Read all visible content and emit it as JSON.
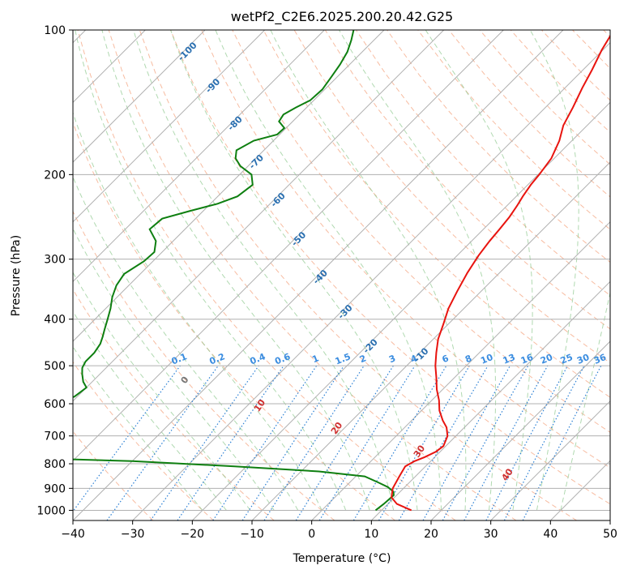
{
  "chart_data": {
    "type": "line",
    "title": "wetPf2_C2E6.2025.200.20.42.G25",
    "xlabel": "Temperature (°C)",
    "ylabel": "Pressure (hPa)",
    "xlim": [
      -40,
      50
    ],
    "ylim": [
      1050,
      100
    ],
    "y_scale": "log",
    "grid": true,
    "x_ticks": [
      "−40",
      "−30",
      "−20",
      "−10",
      "0",
      "10",
      "20",
      "30",
      "40",
      "50"
    ],
    "x_tick_values": [
      -40,
      -30,
      -20,
      -10,
      0,
      10,
      20,
      30,
      40,
      50
    ],
    "y_ticks": [
      "100",
      "200",
      "300",
      "400",
      "500",
      "600",
      "700",
      "800",
      "900",
      "1000"
    ],
    "y_tick_values": [
      100,
      200,
      300,
      400,
      500,
      600,
      700,
      800,
      900,
      1000
    ],
    "colors": {
      "temperature": "#e8140f",
      "dewpoint": "#0e7f10",
      "isotherm": "#b0b0b0",
      "dry_adiabat": "#f4a582",
      "moist_adiabat": "#8fc98f",
      "mixing_ratio": "#2a7fd4",
      "mixing_label": "#3b8de0",
      "isotherm_label": "#2a6fb0",
      "adiabat_label": "#d03030"
    },
    "series": [
      {
        "key": "temperature",
        "points": [
          [
            15.0,
            1000
          ],
          [
            11.5,
            970
          ],
          [
            9.5,
            940
          ],
          [
            8.2,
            900
          ],
          [
            7.3,
            850
          ],
          [
            6.6,
            810
          ],
          [
            7.3,
            790
          ],
          [
            8.3,
            775
          ],
          [
            9.3,
            755
          ],
          [
            9.6,
            735
          ],
          [
            8.6,
            700
          ],
          [
            7.0,
            672
          ],
          [
            5.2,
            650
          ],
          [
            3.0,
            620
          ],
          [
            1.2,
            590
          ],
          [
            -1.0,
            560
          ],
          [
            -3.0,
            530
          ],
          [
            -5.2,
            500
          ],
          [
            -7.2,
            470
          ],
          [
            -9.2,
            440
          ],
          [
            -10.8,
            410
          ],
          [
            -12.6,
            380
          ],
          [
            -14.0,
            350
          ],
          [
            -15.4,
            320
          ],
          [
            -16.4,
            295
          ],
          [
            -17.0,
            275
          ],
          [
            -17.3,
            260
          ],
          [
            -17.7,
            245
          ],
          [
            -18.3,
            232
          ],
          [
            -18.9,
            222
          ],
          [
            -19.5,
            210
          ],
          [
            -19.8,
            200
          ],
          [
            -20.5,
            185
          ],
          [
            -22.1,
            170
          ],
          [
            -24.0,
            158
          ],
          [
            -25.4,
            145
          ],
          [
            -27.1,
            132
          ],
          [
            -28.5,
            121
          ],
          [
            -30.2,
            110
          ],
          [
            -31.5,
            100
          ]
        ]
      },
      {
        "key": "dewpoint",
        "points": [
          [
            9.0,
            1000
          ],
          [
            9.3,
            970
          ],
          [
            9.5,
            930
          ],
          [
            8.9,
            915
          ],
          [
            7.2,
            895
          ],
          [
            4.8,
            875
          ],
          [
            1.5,
            850
          ],
          [
            -7.0,
            830
          ],
          [
            -22.0,
            810
          ],
          [
            -40.0,
            790
          ],
          [
            -58.0,
            778
          ],
          [
            -70.0,
            770
          ],
          [
            -71.5,
            760
          ],
          [
            -72.5,
            750
          ],
          [
            -73.0,
            730
          ],
          [
            -73.3,
            725
          ],
          [
            -72.5,
            710
          ],
          [
            -69.5,
            700
          ],
          [
            -65.0,
            690
          ],
          [
            -62.0,
            680
          ],
          [
            -62.6,
            660
          ],
          [
            -63.5,
            640
          ],
          [
            -65.0,
            620
          ],
          [
            -63.0,
            600
          ],
          [
            -60.5,
            580
          ],
          [
            -60.0,
            555
          ],
          [
            -61.5,
            540
          ],
          [
            -63.0,
            520
          ],
          [
            -64.0,
            505
          ],
          [
            -64.5,
            490
          ],
          [
            -64.5,
            470
          ],
          [
            -65.0,
            450
          ],
          [
            -65.8,
            435
          ],
          [
            -66.7,
            420
          ],
          [
            -67.9,
            400
          ],
          [
            -69.2,
            380
          ],
          [
            -70.8,
            360
          ],
          [
            -72.1,
            340
          ],
          [
            -72.7,
            322
          ],
          [
            -71.5,
            303
          ],
          [
            -71.3,
            290
          ],
          [
            -72.9,
            275
          ],
          [
            -75.9,
            260
          ],
          [
            -75.6,
            247
          ],
          [
            -72.2,
            238
          ],
          [
            -68.8,
            230
          ],
          [
            -66.7,
            222
          ],
          [
            -66.1,
            210
          ],
          [
            -68.0,
            200
          ],
          [
            -71.3,
            192
          ],
          [
            -73.4,
            185
          ],
          [
            -74.6,
            178
          ],
          [
            -73.3,
            170
          ],
          [
            -70.4,
            165
          ],
          [
            -70.3,
            160
          ],
          [
            -72.3,
            155
          ],
          [
            -72.7,
            150
          ],
          [
            -71.8,
            145
          ],
          [
            -70.6,
            140
          ],
          [
            -70.4,
            133
          ],
          [
            -71.0,
            125
          ],
          [
            -71.6,
            118
          ],
          [
            -72.5,
            111
          ],
          [
            -73.8,
            105
          ],
          [
            -75.1,
            100
          ]
        ]
      }
    ],
    "isotherm_labels": [
      "-100",
      "-90",
      "-80",
      "-70",
      "-60",
      "-50",
      "-40",
      "-30",
      "-20",
      "-10"
    ],
    "mixing_ratio_labels": [
      "0.1",
      "0.2",
      "0.4",
      "0.6",
      "1",
      "1.5",
      "2",
      "3",
      "4",
      "6",
      "8",
      "10",
      "13",
      "16",
      "20",
      "25",
      "30",
      "36"
    ],
    "dry_adiabat_labels": [
      "0",
      "10",
      "20",
      "30",
      "40"
    ]
  }
}
